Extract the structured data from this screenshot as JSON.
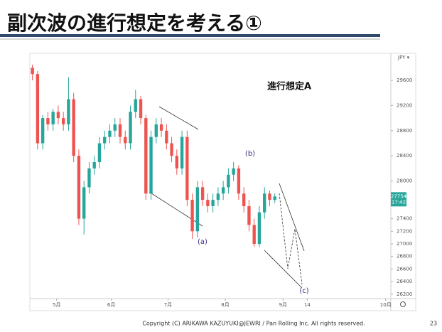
{
  "title": "副次波の進行想定を考える①",
  "footer": "Copyright (C) ARIKAWA KAZUYUKI@JEWRI / Pan Rolling Inc. All rights reserved.",
  "page_number": "23",
  "chart_data": {
    "type": "candlestick",
    "currency": "JPY ▾",
    "annotation": "進行想定A",
    "wave_labels": [
      "(a)",
      "(b)",
      "(c)"
    ],
    "last_price": 27754,
    "last_time": "17:42",
    "up_color": "#26a69a",
    "down_color": "#ef5350",
    "open": [
      29800,
      29700,
      28600,
      29000,
      28900,
      29100,
      29000,
      28900,
      29300,
      28400,
      27400,
      27900,
      28200,
      28300,
      28600,
      28700,
      28800,
      28900,
      28700,
      28600,
      29100,
      29300,
      29000,
      27800,
      28700,
      28900,
      28800,
      28600,
      28400,
      28200,
      28700,
      27700,
      27200,
      27900,
      27700,
      27600,
      27700,
      27800,
      27900,
      28100,
      28200,
      27800,
      27600,
      27300,
      27000,
      27500,
      27800,
      27700
    ],
    "high": [
      29850,
      29750,
      29050,
      29100,
      29150,
      29200,
      29100,
      29650,
      29400,
      28500,
      28000,
      28300,
      28400,
      28700,
      28800,
      28900,
      29000,
      29000,
      28800,
      29200,
      29450,
      29350,
      29050,
      28800,
      29000,
      29000,
      28900,
      28700,
      28500,
      28800,
      28800,
      27800,
      28000,
      28000,
      27800,
      27800,
      27900,
      28000,
      28200,
      28300,
      28250,
      27900,
      27700,
      27400,
      27600,
      27900,
      27850,
      27800
    ],
    "low": [
      29600,
      28500,
      28500,
      28800,
      28800,
      28900,
      28800,
      28800,
      28300,
      27300,
      27150,
      27800,
      28100,
      28200,
      28500,
      28600,
      28700,
      28600,
      28500,
      28500,
      29000,
      28900,
      27700,
      27700,
      28600,
      28700,
      28500,
      28300,
      28100,
      28100,
      27600,
      27080,
      27100,
      27600,
      27500,
      27500,
      27600,
      27700,
      27800,
      28000,
      27700,
      27500,
      27200,
      26950,
      26950,
      27400,
      27600,
      27650
    ],
    "close": [
      29700,
      28600,
      29000,
      28900,
      29100,
      29000,
      28900,
      29300,
      28400,
      27400,
      27900,
      28200,
      28300,
      28600,
      28700,
      28800,
      28900,
      28700,
      28600,
      29100,
      29300,
      29000,
      27800,
      28700,
      28900,
      28800,
      28600,
      28400,
      28200,
      28700,
      27700,
      27200,
      27900,
      27700,
      27600,
      27700,
      27800,
      27900,
      28100,
      28200,
      27800,
      27600,
      27300,
      27000,
      27500,
      27800,
      27700,
      27754
    ],
    "xlim": [
      -0.5,
      69.5
    ],
    "xticks": [
      {
        "value": 4.7,
        "label": "5月"
      },
      {
        "value": 15.3,
        "label": "6月"
      },
      {
        "value": 26.3,
        "label": "7月"
      },
      {
        "value": 37.4,
        "label": "8月"
      },
      {
        "value": 48.6,
        "label": "9月"
      },
      {
        "value": 53.3,
        "label": "14"
      },
      {
        "value": 68.5,
        "label": "10月"
      }
    ],
    "ylim": [
      26130,
      30030
    ],
    "yticks": [
      26200,
      26400,
      26600,
      26800,
      27000,
      27200,
      27400,
      28000,
      28400,
      28800,
      29200,
      29600
    ],
    "grid": false
  }
}
